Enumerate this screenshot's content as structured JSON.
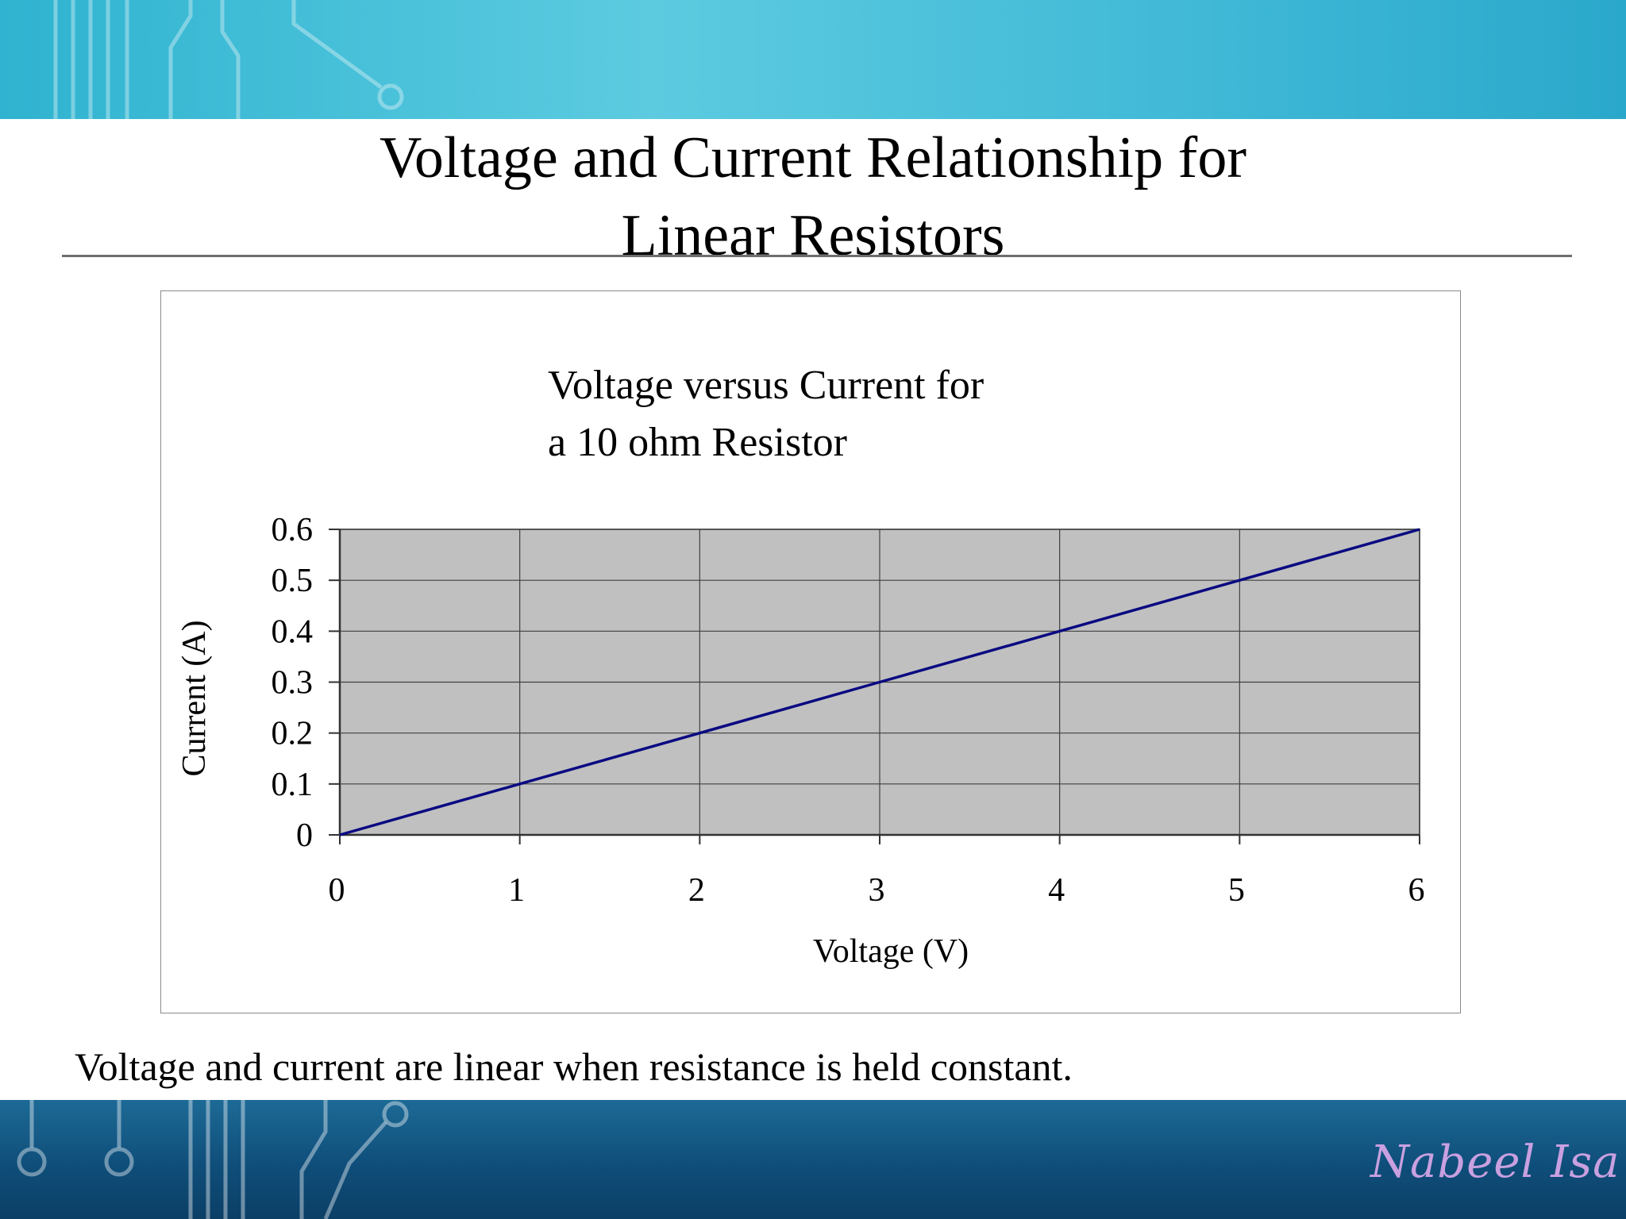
{
  "slide": {
    "title": "Voltage and Current Relationship  for\nLinear Resistors",
    "caption": "Voltage and current are linear when resistance is held constant.",
    "watermark": "Nabeel Isa"
  },
  "colors": {
    "banner_top": "#4cc2dc",
    "banner_bottom": "#0f4e7a",
    "plot_background": "#c0c0c0",
    "series_line": "#0a0a82",
    "gridline": "#404040"
  },
  "chart_data": {
    "type": "line",
    "title": "Voltage versus Current  for\n a 10 ohm Resistor",
    "xlabel": "Voltage (V)",
    "ylabel": "Current (A)",
    "xlim": [
      0,
      6
    ],
    "ylim": [
      0,
      0.6
    ],
    "x_ticks": [
      "0",
      "1",
      "2",
      "3",
      "4",
      "5",
      "6"
    ],
    "y_ticks": [
      "0",
      "0.1",
      "0.2",
      "0.3",
      "0.4",
      "0.5",
      "0.6"
    ],
    "grid": true,
    "legend": "none",
    "series": [
      {
        "x": [
          0,
          1,
          2,
          3,
          4,
          5,
          6
        ],
        "y": [
          0,
          0.1,
          0.2,
          0.3,
          0.4,
          0.5,
          0.6
        ]
      }
    ]
  }
}
